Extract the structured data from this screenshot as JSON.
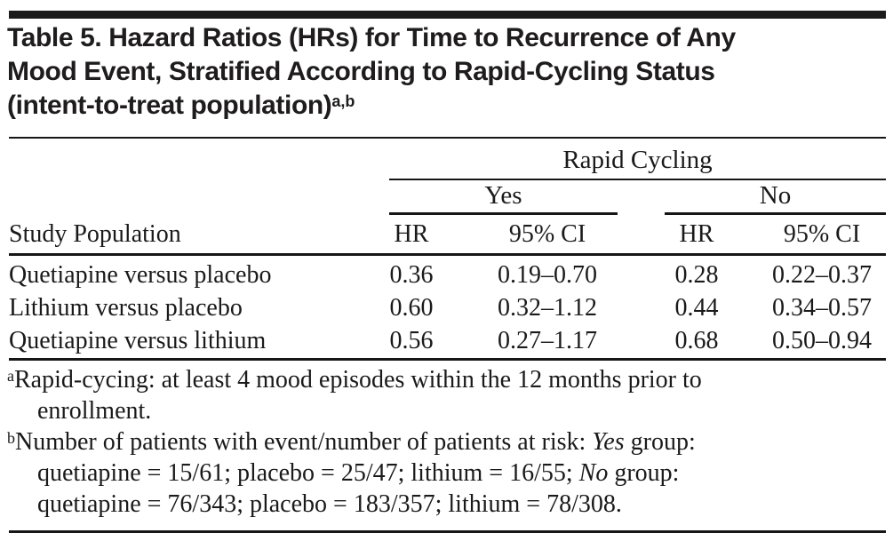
{
  "title": {
    "line1": "Table 5. Hazard Ratios (HRs) for Time to Recurrence of Any",
    "line2": "Mood Event, Stratified According to Rapid-Cycling Status",
    "line3": "(intent-to-treat population)",
    "footnote_markers": "a,b"
  },
  "table": {
    "group_header": "Rapid Cycling",
    "subgroups": [
      {
        "label": "Yes"
      },
      {
        "label": "No"
      }
    ],
    "columns": {
      "population": "Study Population",
      "yes_hr": "HR",
      "yes_ci": "95% CI",
      "no_hr": "HR",
      "no_ci": "95% CI"
    },
    "rows": [
      {
        "population": "Quetiapine versus placebo",
        "yes_hr": "0.36",
        "yes_ci": "0.19–0.70",
        "no_hr": "0.28",
        "no_ci": "0.22–0.37"
      },
      {
        "population": "Lithium versus placebo",
        "yes_hr": "0.60",
        "yes_ci": "0.32–1.12",
        "no_hr": "0.44",
        "no_ci": "0.34–0.57"
      },
      {
        "population": "Quetiapine versus lithium",
        "yes_hr": "0.56",
        "yes_ci": "0.27–1.17",
        "no_hr": "0.68",
        "no_ci": "0.50–0.94"
      }
    ]
  },
  "footnotes": {
    "a_marker": "a",
    "a_line1": "Rapid-cycing: at least 4 mood episodes within the 12 months prior to",
    "a_line2": "enrollment.",
    "b_marker": "b",
    "b1_pre": "Number of patients with event/number of patients at risk: ",
    "b1_italic": "Yes",
    "b1_post": " group:",
    "b2_pre": "quetiapine = 15/61; placebo = 25/47; lithium = 16/55; ",
    "b2_italic": "No",
    "b2_post": " group:",
    "b3": "quetiapine = 76/343; placebo = 183/357; lithium = 78/308."
  },
  "colors": {
    "text": "#1a1a1a",
    "rule": "#161616",
    "background": "#ffffff"
  }
}
